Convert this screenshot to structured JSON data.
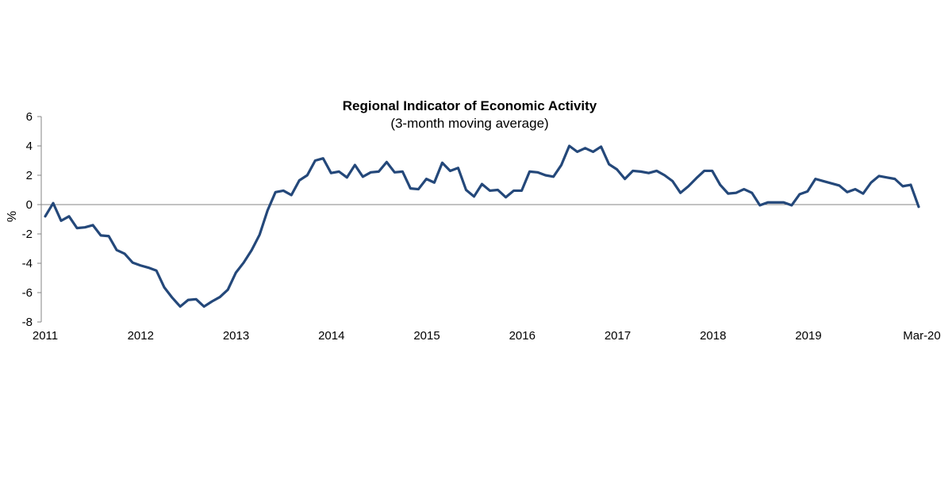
{
  "chart_data": {
    "type": "line",
    "title": "Regional Indicator of Economic Activity",
    "subtitle": "(3-month moving average)",
    "ylabel": "%",
    "xlabel": "",
    "ylim": [
      -8,
      6
    ],
    "yticks": [
      "6",
      "4",
      "2",
      "0",
      "-2",
      "-4",
      "-6",
      "-8"
    ],
    "xticks": [
      "2011",
      "2012",
      "2013",
      "2014",
      "2015",
      "2016",
      "2017",
      "2018",
      "2019",
      "Mar-20"
    ],
    "grid": false,
    "legend": "none",
    "line_color": "#24487a",
    "start_month": "2011-01",
    "series": [
      {
        "values": [
          -0.8,
          0.1,
          -1.1,
          -0.8,
          -1.6,
          -1.55,
          -1.4,
          -2.1,
          -2.15,
          -3.1,
          -3.35,
          -3.95,
          -4.15,
          -4.3,
          -4.5,
          -5.65,
          -6.35,
          -6.95,
          -6.5,
          -6.45,
          -6.95,
          -6.6,
          -6.3,
          -5.8,
          -4.65,
          -3.95,
          -3.1,
          -2.05,
          -0.4,
          0.85,
          0.95,
          0.65,
          1.65,
          2.0,
          3.0,
          3.15,
          2.15,
          2.25,
          1.85,
          2.7,
          1.9,
          2.2,
          2.25,
          2.9,
          2.2,
          2.25,
          1.1,
          1.05,
          1.75,
          1.5,
          2.85,
          2.3,
          2.5,
          1.0,
          0.55,
          1.4,
          0.95,
          1.0,
          0.5,
          0.95,
          0.95,
          2.25,
          2.2,
          2.0,
          1.9,
          2.7,
          4.0,
          3.6,
          3.85,
          3.6,
          3.95,
          2.75,
          2.4,
          1.75,
          2.3,
          2.25,
          2.15,
          2.3,
          2.0,
          1.6,
          0.8,
          1.25,
          1.8,
          2.3,
          2.3,
          1.35,
          0.75,
          0.8,
          1.05,
          0.8,
          -0.05,
          0.15,
          0.15,
          0.15,
          -0.05,
          0.7,
          0.9,
          1.75,
          1.6,
          1.45,
          1.3,
          0.85,
          1.05,
          0.75,
          1.5,
          1.95,
          1.85,
          1.75,
          1.25,
          1.35,
          -0.15
        ]
      }
    ]
  }
}
